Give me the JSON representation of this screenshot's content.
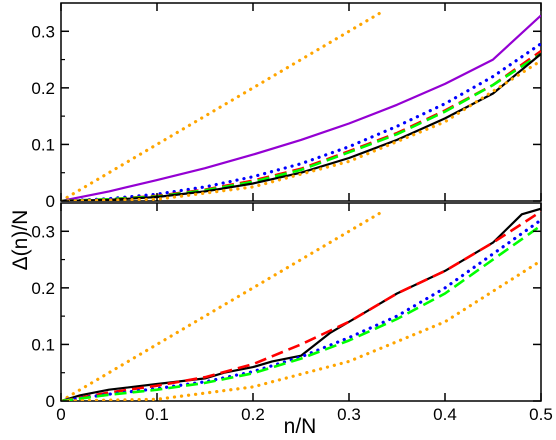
{
  "chart_data": [
    {
      "type": "line",
      "panel": "top",
      "xlim": [
        0,
        0.5
      ],
      "ylim": [
        0,
        0.35
      ],
      "yticks": [
        0,
        0.1,
        0.2,
        0.3
      ],
      "ytick_labels": [
        "0",
        "0.1",
        "0.2",
        "0.3"
      ],
      "series": [
        {
          "color": "#ffa500",
          "style": "dotted",
          "x": [
            0,
            0.05,
            0.1,
            0.15,
            0.2,
            0.25,
            0.3,
            0.335
          ],
          "y": [
            0,
            0.05,
            0.1,
            0.15,
            0.2,
            0.25,
            0.3,
            0.335
          ]
        },
        {
          "color": "#9400d3",
          "style": "solid",
          "x": [
            0,
            0.05,
            0.1,
            0.15,
            0.2,
            0.25,
            0.3,
            0.35,
            0.4,
            0.45,
            0.5
          ],
          "y": [
            0,
            0.017,
            0.037,
            0.058,
            0.082,
            0.108,
            0.137,
            0.17,
            0.207,
            0.25,
            0.328
          ]
        },
        {
          "color": "#0000ff",
          "style": "dotted",
          "x": [
            0,
            0.05,
            0.1,
            0.15,
            0.2,
            0.25,
            0.3,
            0.35,
            0.4,
            0.45,
            0.5
          ],
          "y": [
            0,
            0.004,
            0.012,
            0.025,
            0.043,
            0.066,
            0.096,
            0.132,
            0.172,
            0.22,
            0.278
          ]
        },
        {
          "color": "#ff0000",
          "style": "dashed",
          "x": [
            0,
            0.05,
            0.1,
            0.15,
            0.2,
            0.25,
            0.3,
            0.35,
            0.4,
            0.45,
            0.5
          ],
          "y": [
            0,
            0.003,
            0.009,
            0.02,
            0.036,
            0.057,
            0.088,
            0.12,
            0.16,
            0.205,
            0.265
          ]
        },
        {
          "color": "#00ff00",
          "style": "dashed",
          "x": [
            0,
            0.05,
            0.1,
            0.15,
            0.2,
            0.25,
            0.3,
            0.35,
            0.4,
            0.45,
            0.5
          ],
          "y": [
            0,
            0.003,
            0.008,
            0.019,
            0.034,
            0.055,
            0.086,
            0.118,
            0.158,
            0.205,
            0.26
          ]
        },
        {
          "color": "#000000",
          "style": "solid",
          "x": [
            0,
            0.05,
            0.1,
            0.15,
            0.2,
            0.25,
            0.3,
            0.35,
            0.4,
            0.45,
            0.5
          ],
          "y": [
            0,
            0.002,
            0.007,
            0.017,
            0.031,
            0.05,
            0.076,
            0.108,
            0.146,
            0.19,
            0.26
          ]
        },
        {
          "color": "#ffa500",
          "style": "dotted",
          "x": [
            0,
            0.1,
            0.2,
            0.3,
            0.4,
            0.5
          ],
          "y": [
            0,
            0.003,
            0.025,
            0.07,
            0.14,
            0.248
          ]
        }
      ]
    },
    {
      "type": "line",
      "panel": "bottom",
      "xlim": [
        0,
        0.5
      ],
      "ylim": [
        0,
        0.35
      ],
      "xticks": [
        0,
        0.1,
        0.2,
        0.3,
        0.4,
        0.5
      ],
      "xtick_labels": [
        "0",
        "0.1",
        "0.2",
        "0.3",
        "0.4",
        "0.5"
      ],
      "yticks": [
        0,
        0.1,
        0.2,
        0.3
      ],
      "ytick_labels": [
        "0",
        "0.1",
        "0.2",
        "0.3"
      ],
      "series": [
        {
          "color": "#ffa500",
          "style": "dotted",
          "x": [
            0,
            0.05,
            0.1,
            0.15,
            0.2,
            0.25,
            0.3,
            0.335
          ],
          "y": [
            0,
            0.05,
            0.1,
            0.15,
            0.2,
            0.25,
            0.3,
            0.335
          ]
        },
        {
          "color": "#000000",
          "style": "solid",
          "x": [
            0,
            0.02,
            0.05,
            0.1,
            0.15,
            0.17,
            0.2,
            0.22,
            0.25,
            0.28,
            0.3,
            0.35,
            0.4,
            0.45,
            0.48,
            0.5
          ],
          "y": [
            0,
            0.01,
            0.02,
            0.03,
            0.04,
            0.05,
            0.06,
            0.07,
            0.08,
            0.12,
            0.14,
            0.19,
            0.23,
            0.28,
            0.33,
            0.34
          ]
        },
        {
          "color": "#ff0000",
          "style": "dashed",
          "x": [
            0,
            0.05,
            0.1,
            0.15,
            0.2,
            0.25,
            0.3,
            0.35,
            0.4,
            0.45,
            0.5
          ],
          "y": [
            0,
            0.015,
            0.027,
            0.042,
            0.065,
            0.1,
            0.14,
            0.19,
            0.23,
            0.28,
            0.335
          ]
        },
        {
          "color": "#0000ff",
          "style": "dotted",
          "x": [
            0,
            0.05,
            0.1,
            0.15,
            0.2,
            0.25,
            0.3,
            0.35,
            0.4,
            0.45,
            0.5
          ],
          "y": [
            0,
            0.012,
            0.022,
            0.034,
            0.052,
            0.078,
            0.112,
            0.15,
            0.2,
            0.26,
            0.32
          ]
        },
        {
          "color": "#00ff00",
          "style": "dashed",
          "x": [
            0,
            0.05,
            0.1,
            0.15,
            0.2,
            0.25,
            0.3,
            0.35,
            0.4,
            0.45,
            0.5
          ],
          "y": [
            0,
            0.011,
            0.02,
            0.032,
            0.049,
            0.075,
            0.107,
            0.145,
            0.19,
            0.25,
            0.31
          ]
        },
        {
          "color": "#ffa500",
          "style": "dotted",
          "x": [
            0,
            0.1,
            0.2,
            0.3,
            0.4,
            0.5
          ],
          "y": [
            0,
            0.003,
            0.025,
            0.07,
            0.14,
            0.248
          ]
        }
      ]
    }
  ],
  "labels": {
    "xlabel": "n/N",
    "ylabel": "Δ(n)/N"
  }
}
